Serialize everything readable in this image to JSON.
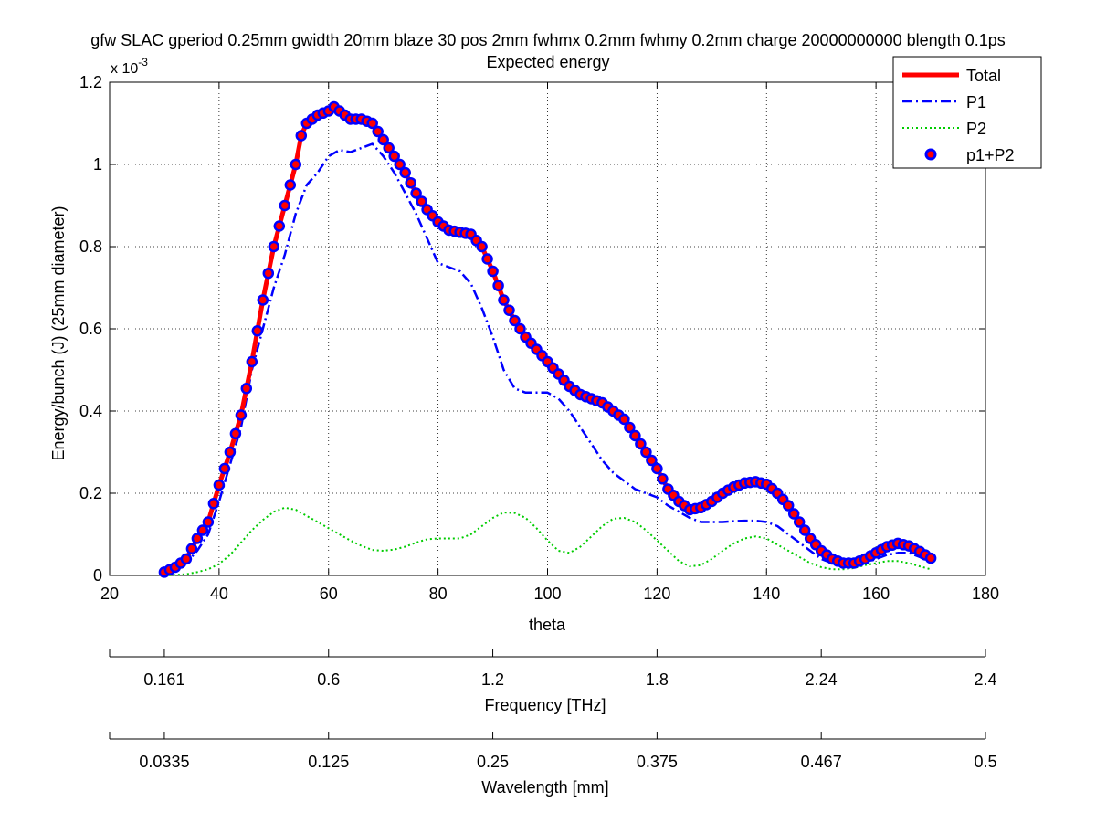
{
  "chart_data": {
    "type": "line",
    "title": "gfw SLAC gperiod 0.25mm gwidth 20mm blaze 30 pos 2mm fwhmx 0.2mm fwhmy 0.2mm charge 20000000000 blength 0.1ps",
    "subtitle": "Expected energy",
    "xlabel": "theta",
    "ylabel": "Energy/bunch (J) (25mm diameter)",
    "y_exponent_label": "x 10",
    "y_exponent_power": "-3",
    "y_scale_factor": 0.001,
    "xlim": [
      20,
      180
    ],
    "ylim": [
      0,
      1.2
    ],
    "grid": true,
    "legend_position": "top-right",
    "x_ticks": [
      20,
      40,
      60,
      80,
      100,
      120,
      140,
      160,
      180
    ],
    "x_tick_labels": [
      "20",
      "40",
      "60",
      "80",
      "100",
      "120",
      "140",
      "160",
      "180"
    ],
    "y_ticks": [
      0,
      0.2,
      0.4,
      0.6,
      0.8,
      1.0,
      1.2
    ],
    "y_tick_labels": [
      "0",
      "0.2",
      "0.4",
      "0.6",
      "0.8",
      "1",
      "1.2"
    ],
    "secondary_axes": [
      {
        "label": "Frequency [THz]",
        "tick_theta": [
          30,
          60,
          90,
          120,
          150,
          180
        ],
        "tick_labels": [
          "0.161",
          "0.6",
          "1.2",
          "1.8",
          "2.24",
          "2.4"
        ]
      },
      {
        "label": "Wavelength [mm]",
        "tick_theta": [
          30,
          60,
          90,
          120,
          150,
          180
        ],
        "tick_labels": [
          "0.0335",
          "0.125",
          "0.25",
          "0.375",
          "0.467",
          "0.5"
        ]
      }
    ],
    "series": [
      {
        "name": "Total",
        "style": "solid-thick",
        "color": "#ff0000",
        "points": [
          [
            30,
            0.008
          ],
          [
            32,
            0.02
          ],
          [
            34,
            0.04
          ],
          [
            36,
            0.09
          ],
          [
            38,
            0.13
          ],
          [
            40,
            0.22
          ],
          [
            42,
            0.3
          ],
          [
            44,
            0.39
          ],
          [
            46,
            0.52
          ],
          [
            48,
            0.67
          ],
          [
            50,
            0.8
          ],
          [
            52,
            0.9
          ],
          [
            54,
            1.0
          ],
          [
            55,
            1.07
          ],
          [
            56,
            1.1
          ],
          [
            58,
            1.12
          ],
          [
            60,
            1.13
          ],
          [
            61,
            1.14
          ],
          [
            62,
            1.13
          ],
          [
            64,
            1.11
          ],
          [
            66,
            1.11
          ],
          [
            68,
            1.1
          ],
          [
            70,
            1.06
          ],
          [
            72,
            1.02
          ],
          [
            74,
            0.98
          ],
          [
            76,
            0.93
          ],
          [
            78,
            0.89
          ],
          [
            80,
            0.86
          ],
          [
            82,
            0.84
          ],
          [
            84,
            0.835
          ],
          [
            86,
            0.83
          ],
          [
            88,
            0.8
          ],
          [
            90,
            0.74
          ],
          [
            92,
            0.67
          ],
          [
            94,
            0.62
          ],
          [
            96,
            0.58
          ],
          [
            98,
            0.55
          ],
          [
            100,
            0.52
          ],
          [
            102,
            0.49
          ],
          [
            104,
            0.46
          ],
          [
            106,
            0.44
          ],
          [
            108,
            0.43
          ],
          [
            110,
            0.42
          ],
          [
            112,
            0.4
          ],
          [
            114,
            0.38
          ],
          [
            116,
            0.34
          ],
          [
            118,
            0.3
          ],
          [
            120,
            0.26
          ],
          [
            122,
            0.21
          ],
          [
            124,
            0.18
          ],
          [
            126,
            0.16
          ],
          [
            128,
            0.165
          ],
          [
            130,
            0.18
          ],
          [
            132,
            0.2
          ],
          [
            134,
            0.215
          ],
          [
            136,
            0.225
          ],
          [
            138,
            0.228
          ],
          [
            140,
            0.222
          ],
          [
            142,
            0.2
          ],
          [
            144,
            0.17
          ],
          [
            146,
            0.13
          ],
          [
            148,
            0.09
          ],
          [
            150,
            0.06
          ],
          [
            152,
            0.04
          ],
          [
            154,
            0.03
          ],
          [
            156,
            0.03
          ],
          [
            158,
            0.04
          ],
          [
            160,
            0.055
          ],
          [
            162,
            0.07
          ],
          [
            164,
            0.078
          ],
          [
            166,
            0.072
          ],
          [
            168,
            0.058
          ],
          [
            170,
            0.042
          ]
        ]
      },
      {
        "name": "P1",
        "style": "dash-dot",
        "color": "#0000ff",
        "points": [
          [
            30,
            0.008
          ],
          [
            32,
            0.015
          ],
          [
            34,
            0.03
          ],
          [
            36,
            0.06
          ],
          [
            38,
            0.1
          ],
          [
            40,
            0.18
          ],
          [
            42,
            0.27
          ],
          [
            44,
            0.36
          ],
          [
            46,
            0.5
          ],
          [
            48,
            0.6
          ],
          [
            50,
            0.7
          ],
          [
            52,
            0.78
          ],
          [
            54,
            0.88
          ],
          [
            56,
            0.95
          ],
          [
            58,
            0.98
          ],
          [
            60,
            1.02
          ],
          [
            62,
            1.035
          ],
          [
            64,
            1.03
          ],
          [
            66,
            1.04
          ],
          [
            68,
            1.05
          ],
          [
            70,
            1.02
          ],
          [
            72,
            0.98
          ],
          [
            74,
            0.93
          ],
          [
            76,
            0.88
          ],
          [
            78,
            0.82
          ],
          [
            80,
            0.76
          ],
          [
            82,
            0.75
          ],
          [
            84,
            0.74
          ],
          [
            86,
            0.71
          ],
          [
            88,
            0.65
          ],
          [
            90,
            0.58
          ],
          [
            92,
            0.5
          ],
          [
            94,
            0.455
          ],
          [
            96,
            0.445
          ],
          [
            98,
            0.445
          ],
          [
            100,
            0.445
          ],
          [
            102,
            0.43
          ],
          [
            104,
            0.4
          ],
          [
            106,
            0.36
          ],
          [
            108,
            0.32
          ],
          [
            110,
            0.28
          ],
          [
            112,
            0.25
          ],
          [
            114,
            0.23
          ],
          [
            116,
            0.21
          ],
          [
            118,
            0.2
          ],
          [
            120,
            0.19
          ],
          [
            122,
            0.17
          ],
          [
            124,
            0.155
          ],
          [
            126,
            0.14
          ],
          [
            128,
            0.13
          ],
          [
            130,
            0.13
          ],
          [
            132,
            0.13
          ],
          [
            134,
            0.132
          ],
          [
            136,
            0.133
          ],
          [
            138,
            0.133
          ],
          [
            140,
            0.13
          ],
          [
            142,
            0.12
          ],
          [
            144,
            0.1
          ],
          [
            146,
            0.08
          ],
          [
            148,
            0.06
          ],
          [
            150,
            0.04
          ],
          [
            152,
            0.03
          ],
          [
            154,
            0.025
          ],
          [
            156,
            0.025
          ],
          [
            158,
            0.03
          ],
          [
            160,
            0.04
          ],
          [
            162,
            0.05
          ],
          [
            164,
            0.055
          ],
          [
            166,
            0.055
          ],
          [
            168,
            0.045
          ],
          [
            170,
            0.03
          ]
        ]
      },
      {
        "name": "P2",
        "style": "dotted",
        "color": "#00cc00",
        "points": [
          [
            30,
            0.0
          ],
          [
            32,
            0.001
          ],
          [
            34,
            0.003
          ],
          [
            36,
            0.008
          ],
          [
            38,
            0.015
          ],
          [
            40,
            0.028
          ],
          [
            42,
            0.05
          ],
          [
            44,
            0.08
          ],
          [
            46,
            0.11
          ],
          [
            48,
            0.135
          ],
          [
            50,
            0.155
          ],
          [
            52,
            0.165
          ],
          [
            54,
            0.16
          ],
          [
            56,
            0.145
          ],
          [
            58,
            0.13
          ],
          [
            60,
            0.115
          ],
          [
            62,
            0.1
          ],
          [
            64,
            0.085
          ],
          [
            66,
            0.072
          ],
          [
            68,
            0.062
          ],
          [
            70,
            0.06
          ],
          [
            72,
            0.063
          ],
          [
            74,
            0.07
          ],
          [
            76,
            0.08
          ],
          [
            78,
            0.088
          ],
          [
            80,
            0.09
          ],
          [
            82,
            0.09
          ],
          [
            84,
            0.09
          ],
          [
            86,
            0.1
          ],
          [
            88,
            0.12
          ],
          [
            90,
            0.14
          ],
          [
            92,
            0.153
          ],
          [
            94,
            0.152
          ],
          [
            96,
            0.14
          ],
          [
            98,
            0.115
          ],
          [
            100,
            0.085
          ],
          [
            102,
            0.06
          ],
          [
            104,
            0.055
          ],
          [
            106,
            0.07
          ],
          [
            108,
            0.095
          ],
          [
            110,
            0.12
          ],
          [
            112,
            0.138
          ],
          [
            114,
            0.14
          ],
          [
            116,
            0.13
          ],
          [
            118,
            0.11
          ],
          [
            120,
            0.085
          ],
          [
            122,
            0.06
          ],
          [
            124,
            0.035
          ],
          [
            126,
            0.022
          ],
          [
            128,
            0.025
          ],
          [
            130,
            0.04
          ],
          [
            132,
            0.06
          ],
          [
            134,
            0.078
          ],
          [
            136,
            0.09
          ],
          [
            138,
            0.095
          ],
          [
            140,
            0.09
          ],
          [
            142,
            0.075
          ],
          [
            144,
            0.06
          ],
          [
            146,
            0.045
          ],
          [
            148,
            0.03
          ],
          [
            150,
            0.02
          ],
          [
            152,
            0.015
          ],
          [
            154,
            0.015
          ],
          [
            156,
            0.018
          ],
          [
            158,
            0.025
          ],
          [
            160,
            0.03
          ],
          [
            162,
            0.035
          ],
          [
            164,
            0.035
          ],
          [
            166,
            0.03
          ],
          [
            168,
            0.022
          ],
          [
            170,
            0.015
          ]
        ]
      },
      {
        "name": "p1+P2",
        "style": "circle-markers",
        "color": "#0000ff",
        "marker_fill": "#ff0000",
        "marker_spacing": 1
      }
    ]
  }
}
